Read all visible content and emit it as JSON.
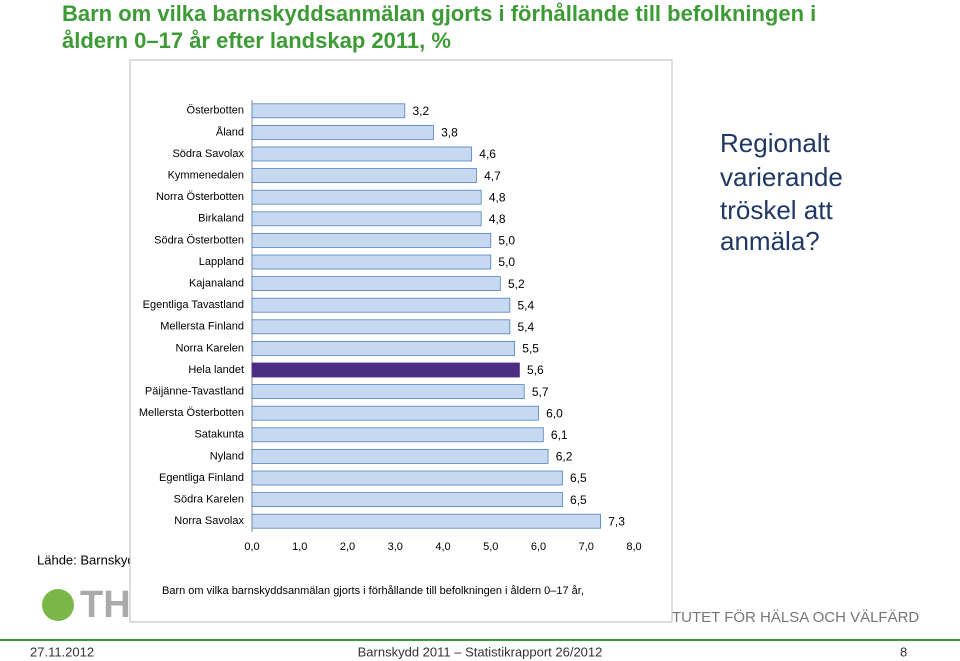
{
  "slide": {
    "title_lines": [
      "Barn om vilka barnskyddsanmälan gjorts i förhållande till befolkningen i",
      "åldern 0–17 år efter landskap 2011, %"
    ],
    "note_lines": [
      "Regionalt",
      "varierande",
      "tröskel att",
      "anmäla?"
    ],
    "source": "Lähde: Barnskyd",
    "logo": "TH",
    "institute": "TUTET FÖR HÄLSA OCH VÄLFÄRD",
    "footer_date": "27.11.2012",
    "footer_title": "Barnskydd 2011 – Statistikrapport 26/2012",
    "page": "8"
  },
  "chart_data": {
    "type": "bar",
    "orientation": "horizontal",
    "x_label": "Barn om vilka barnskyddsanmälan gjorts i förhållande till befolkningen i åldern 0–17 år,",
    "categories": [
      "Österbotten",
      "Åland",
      "Södra Savolax",
      "Kymmenedalen",
      "Norra Österbotten",
      "Birkaland",
      "Södra Österbotten",
      "Lappland",
      "Kajanaland",
      "Egentliga Tavastland",
      "Mellersta Finland",
      "Norra Karelen",
      "Hela landet",
      "Päijänne-Tavastland",
      "Mellersta Österbotten",
      "Satakunta",
      "Nyland",
      "Egentliga Finland",
      "Södra Karelen",
      "Norra Savolax"
    ],
    "values": [
      3.2,
      3.8,
      4.6,
      4.7,
      4.8,
      4.8,
      5.0,
      5.0,
      5.2,
      5.4,
      5.4,
      5.5,
      5.6,
      5.7,
      6.0,
      6.1,
      6.2,
      6.5,
      6.5,
      7.3
    ],
    "value_labels": [
      "3,2",
      "3,8",
      "4,6",
      "4,7",
      "4,8",
      "4,8",
      "5,0",
      "5,0",
      "5,2",
      "5,4",
      "5,4",
      "5,5",
      "5,6",
      "5,7",
      "6,0",
      "6,1",
      "6,2",
      "6,5",
      "6,5",
      "7,3"
    ],
    "colors": [
      "#c6d9f1",
      "#c6d9f1",
      "#c6d9f1",
      "#c6d9f1",
      "#c6d9f1",
      "#c6d9f1",
      "#c6d9f1",
      "#c6d9f1",
      "#c6d9f1",
      "#c6d9f1",
      "#c6d9f1",
      "#c6d9f1",
      "#4b2d83",
      "#c6d9f1",
      "#c6d9f1",
      "#c6d9f1",
      "#c6d9f1",
      "#c6d9f1",
      "#c6d9f1",
      "#c6d9f1"
    ],
    "xlim": [
      0,
      8
    ],
    "xticks": [
      {
        "value": 0,
        "label": "0,0"
      },
      {
        "value": 1,
        "label": "1,0"
      },
      {
        "value": 2,
        "label": "2,0"
      },
      {
        "value": 3,
        "label": "3,0"
      },
      {
        "value": 4,
        "label": "4,0"
      },
      {
        "value": 5,
        "label": "5,0"
      },
      {
        "value": 6,
        "label": "6,0"
      },
      {
        "value": 7,
        "label": "7,0"
      },
      {
        "value": 8,
        "label": "8,0"
      }
    ],
    "grid": false
  }
}
